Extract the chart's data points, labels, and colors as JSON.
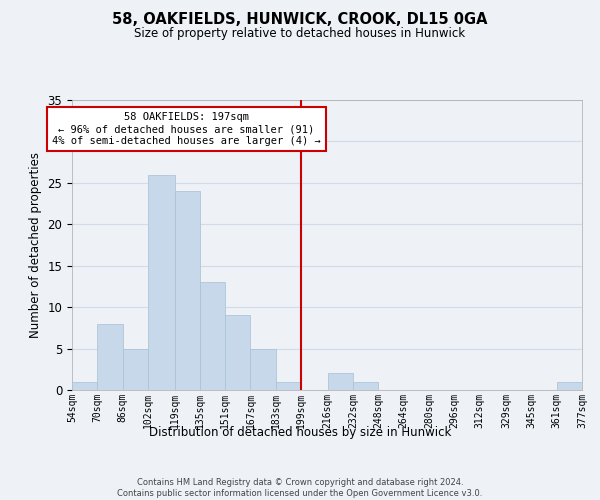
{
  "title": "58, OAKFIELDS, HUNWICK, CROOK, DL15 0GA",
  "subtitle": "Size of property relative to detached houses in Hunwick",
  "xlabel": "Distribution of detached houses by size in Hunwick",
  "ylabel": "Number of detached properties",
  "bar_color": "#c8d8eb",
  "bar_edge_color": "#a8c0d4",
  "bin_edges": [
    54,
    70,
    86,
    102,
    119,
    135,
    151,
    167,
    183,
    199,
    216,
    232,
    248,
    264,
    280,
    296,
    312,
    329,
    345,
    361,
    377
  ],
  "bar_heights": [
    1,
    8,
    5,
    26,
    24,
    13,
    9,
    5,
    1,
    0,
    2,
    1,
    0,
    0,
    0,
    0,
    0,
    0,
    0,
    1
  ],
  "x_labels": [
    "54sqm",
    "70sqm",
    "86sqm",
    "102sqm",
    "119sqm",
    "135sqm",
    "151sqm",
    "167sqm",
    "183sqm",
    "199sqm",
    "216sqm",
    "232sqm",
    "248sqm",
    "264sqm",
    "280sqm",
    "296sqm",
    "312sqm",
    "329sqm",
    "345sqm",
    "361sqm",
    "377sqm"
  ],
  "ylim": [
    0,
    35
  ],
  "yticks": [
    0,
    5,
    10,
    15,
    20,
    25,
    30,
    35
  ],
  "vline_x": 199,
  "vline_color": "#cc0000",
  "annotation_text": "58 OAKFIELDS: 197sqm\n← 96% of detached houses are smaller (91)\n4% of semi-detached houses are larger (4) →",
  "annotation_box_color": "#ffffff",
  "annotation_box_edge_color": "#cc0000",
  "footnote": "Contains HM Land Registry data © Crown copyright and database right 2024.\nContains public sector information licensed under the Open Government Licence v3.0.",
  "grid_color": "#d0dce8",
  "background_color": "#eef2f7"
}
